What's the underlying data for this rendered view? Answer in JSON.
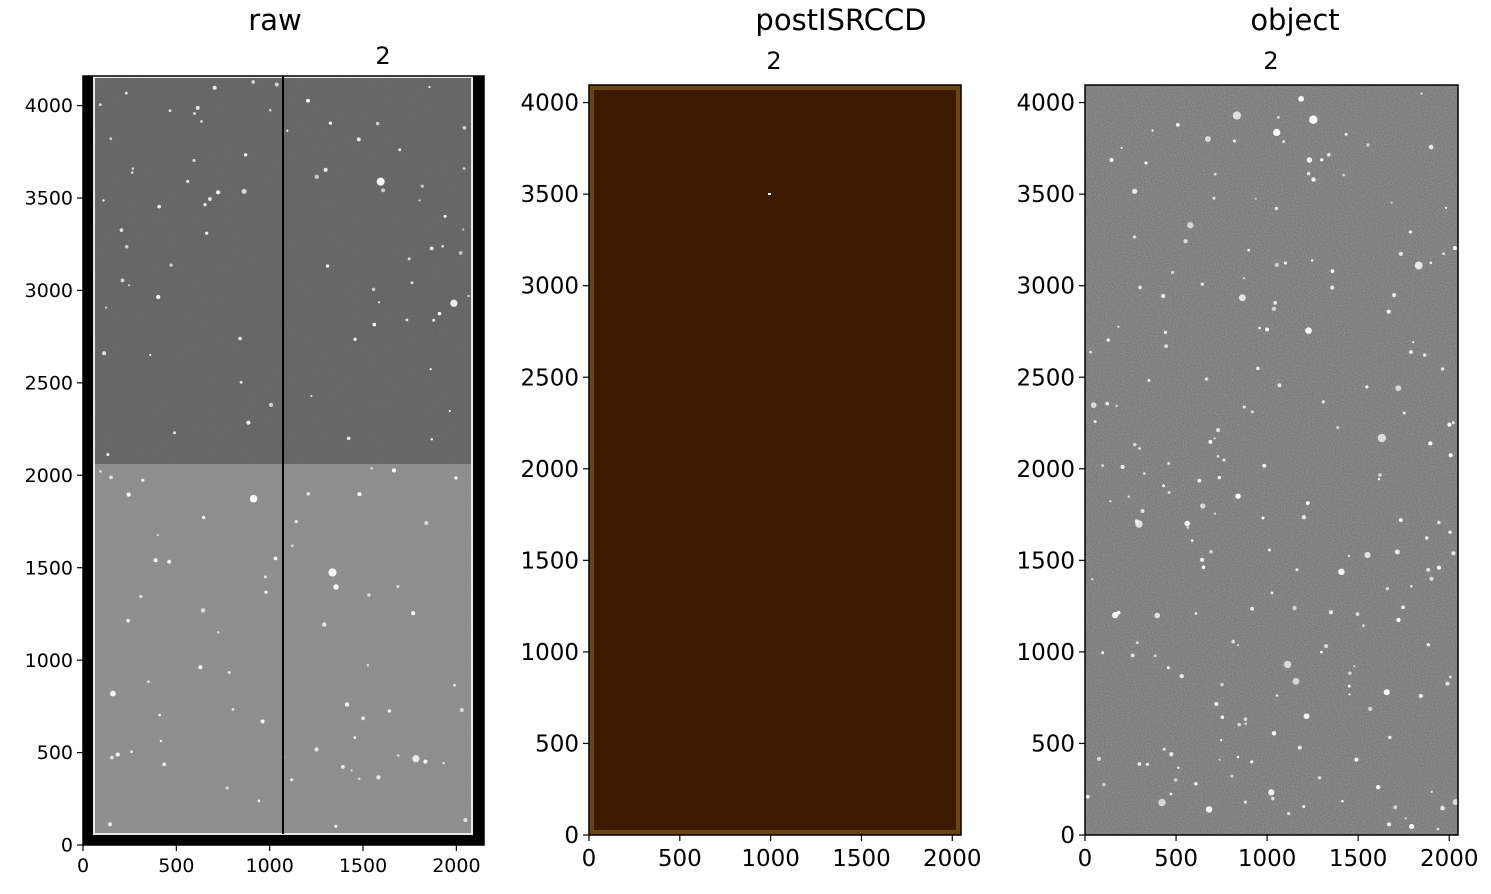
{
  "chart_data": [
    {
      "type": "image",
      "title": "raw",
      "subtitle": "2",
      "colormap": "gray",
      "xlim": [
        0,
        2148
      ],
      "ylim": [
        0,
        4160
      ],
      "xticks": [
        0,
        500,
        1000,
        1500,
        2000
      ],
      "yticks": [
        0,
        500,
        1000,
        1500,
        2000,
        2500,
        3000,
        3500,
        4000
      ],
      "amplifier_split_x": 1072,
      "amplifier_split_y": 2048,
      "colors": {
        "upper_half": "#5f5f5f",
        "lower_half": "#8a8a8a",
        "border": "#000000"
      }
    },
    {
      "type": "image",
      "title": "postISRCCD",
      "subtitle": "2",
      "colormap": "dark-brown",
      "xlim": [
        0,
        2048
      ],
      "ylim": [
        0,
        4096
      ],
      "xticks": [
        0,
        500,
        1000,
        1500,
        2000
      ],
      "yticks": [
        0,
        500,
        1000,
        1500,
        2000,
        2500,
        3000,
        3500,
        4000
      ],
      "colors": {
        "fill": "#3d1a00",
        "edge": "#6b4512"
      }
    },
    {
      "type": "image",
      "title": "object",
      "subtitle": "2",
      "colormap": "gray",
      "xlim": [
        0,
        2048
      ],
      "ylim": [
        0,
        4096
      ],
      "xticks": [
        0,
        500,
        1000,
        1500,
        2000
      ],
      "yticks": [
        0,
        500,
        1000,
        1500,
        2000,
        2500,
        3000,
        3500,
        4000
      ],
      "colors": {
        "background": "#6e6e6e"
      }
    }
  ]
}
